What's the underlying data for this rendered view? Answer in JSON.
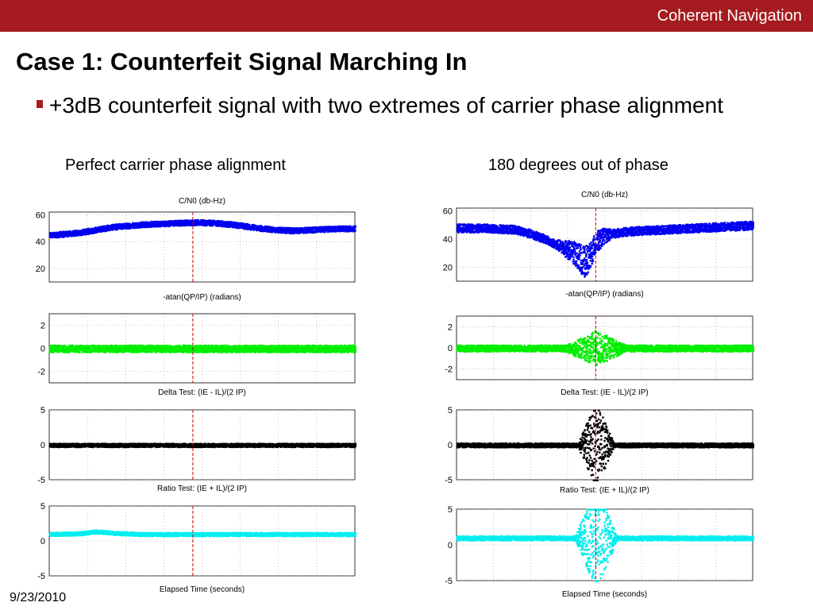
{
  "header": {
    "brand": "Coherent Navigation"
  },
  "slide": {
    "title": "Case 1: Counterfeit Signal Marching In",
    "bullet": "+3dB counterfeit signal with two extremes of carrier phase alignment",
    "date": "9/23/2010",
    "column_headings": [
      "Perfect carrier phase alignment",
      "180 degrees out of phase"
    ]
  },
  "colors": {
    "accent": "#a51b1f",
    "cn0": "#0000ee",
    "phase": "#00ee00",
    "delta": "#000000",
    "ratio": "#00eeee",
    "marker": "#cc0000"
  },
  "chart_data": [
    {
      "type": "scatter",
      "column": "Perfect carrier phase alignment",
      "panels": [
        {
          "title": "C/N0 (db-Hz)",
          "yticks": [
            20,
            40,
            60
          ],
          "ylim": [
            10,
            62
          ],
          "color": "#0000ee",
          "series": {
            "x": [
              0,
              0.05,
              0.1,
              0.15,
              0.2,
              0.25,
              0.3,
              0.35,
              0.4,
              0.45,
              0.5,
              0.55,
              0.6,
              0.65,
              0.7,
              0.75,
              0.8,
              0.85,
              0.9,
              0.95,
              1.0
            ],
            "y": [
              45,
              46,
              47,
              49,
              51,
              52,
              53,
              53.5,
              54,
              54.5,
              54.5,
              54,
              53,
              51.5,
              50,
              49,
              48.5,
              49,
              49.5,
              50,
              50
            ],
            "spread": 2
          }
        },
        {
          "title": "-atan(QP/IP) (radians)",
          "yticks": [
            -2,
            0,
            2
          ],
          "ylim": [
            -3,
            3
          ],
          "color": "#00ee00",
          "series": {
            "x": [
              0,
              1
            ],
            "y": [
              0,
              0
            ],
            "spread": 0.3
          }
        },
        {
          "title": "Delta Test: (IE - IL)/(2 IP)",
          "yticks": [
            -5,
            0,
            5
          ],
          "ylim": [
            -5,
            5
          ],
          "color": "#000000",
          "series": {
            "x": [
              0,
              1
            ],
            "y": [
              0,
              0
            ],
            "spread": 0.25
          }
        },
        {
          "title": "Ratio Test: (IE + IL)/(2 IP)",
          "yticks": [
            -5,
            0,
            5
          ],
          "ylim": [
            -5,
            5
          ],
          "color": "#00eeee",
          "series": {
            "x": [
              0,
              0.1,
              0.15,
              0.2,
              0.3,
              1
            ],
            "y": [
              1,
              1.1,
              1.4,
              1.2,
              1,
              1
            ],
            "spread": 0.25
          }
        }
      ],
      "xlabel": "Elapsed Time (seconds)",
      "marker_x": 0.47
    },
    {
      "type": "scatter",
      "column": "180 degrees out of phase",
      "panels": [
        {
          "title": "C/N0 (db-Hz)",
          "yticks": [
            20,
            40,
            60
          ],
          "ylim": [
            10,
            62
          ],
          "color": "#0000ee",
          "series": {
            "x": [
              0,
              0.1,
              0.2,
              0.25,
              0.3,
              0.35,
              0.4,
              0.43,
              0.45,
              0.47,
              0.5,
              0.55,
              0.6,
              0.7,
              0.8,
              0.9,
              1.0
            ],
            "y": [
              48,
              48,
              47,
              44,
              40,
              35,
              30,
              24,
              28,
              38,
              43,
              45,
              46,
              47,
              48,
              49,
              50
            ],
            "spread": 3
          }
        },
        {
          "title": "-atan(QP/IP) (radians)",
          "yticks": [
            -2,
            0,
            2
          ],
          "ylim": [
            -3,
            3
          ],
          "color": "#00ee00",
          "series": {
            "x": [
              0,
              1
            ],
            "y": [
              0,
              0
            ],
            "spread": 0.3
          }
        },
        {
          "title": "Delta Test: (IE - IL)/(2 IP)",
          "yticks": [
            -5,
            0,
            5
          ],
          "ylim": [
            -5,
            5
          ],
          "color": "#000000",
          "series": {
            "x": [
              0,
              1
            ],
            "y": [
              0,
              0
            ],
            "spread": 0.3
          }
        },
        {
          "title": "Ratio Test: (IE + IL)/(2 IP)",
          "yticks": [
            -5,
            0,
            5
          ],
          "ylim": [
            -5,
            5
          ],
          "color": "#00eeee",
          "series": {
            "x": [
              0,
              1
            ],
            "y": [
              1,
              1
            ],
            "spread": 0.3
          }
        }
      ],
      "xlabel": "Elapsed Time (seconds)",
      "marker_x": 0.47
    }
  ]
}
